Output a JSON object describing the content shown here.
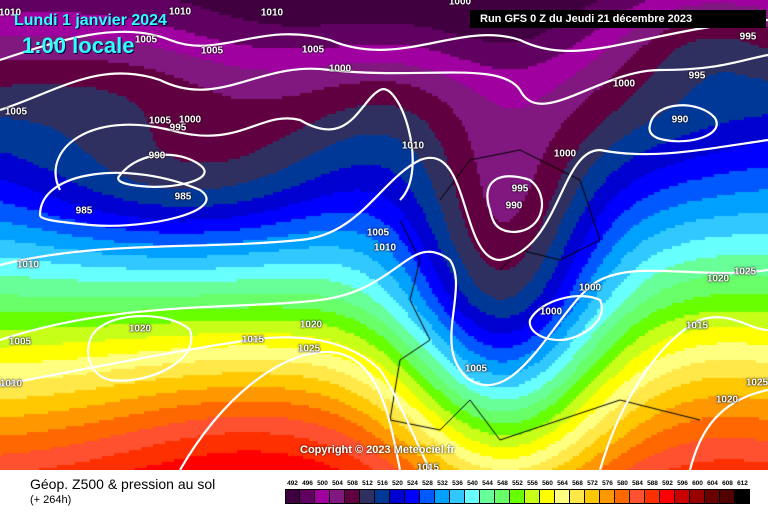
{
  "header": {
    "date": "Lundi 1 janvier 2024",
    "local_time": "1:00 locale",
    "run": "Run GFS 0 Z du Jeudi 21 décembre 2023"
  },
  "copyright": "Copyright © 2023 Meteociel.fr",
  "footer": {
    "title": "Géop. Z500 & pression au sol",
    "forecast_hour": "(+ 264h)"
  },
  "isobar_labels": [
    "1010",
    "1010",
    "1010",
    "1005",
    "1005",
    "1005",
    "1000",
    "995",
    "1000",
    "1000",
    "995",
    "1005",
    "1005",
    "995",
    "1000",
    "990",
    "1010",
    "1000",
    "990",
    "995",
    "990",
    "985",
    "985",
    "1005",
    "1010",
    "1010",
    "1000",
    "1020",
    "1025",
    "1000",
    "1020",
    "1020",
    "1015",
    "1025",
    "1015",
    "1005",
    "1005",
    "1010",
    "1025",
    "1020",
    "1015"
  ],
  "legend": {
    "values": [
      "492",
      "496",
      "500",
      "504",
      "508",
      "512",
      "516",
      "520",
      "524",
      "528",
      "532",
      "536",
      "540",
      "544",
      "548",
      "552",
      "556",
      "560",
      "564",
      "568",
      "572",
      "576",
      "580",
      "584",
      "588",
      "592",
      "596",
      "600",
      "604",
      "608",
      "612"
    ],
    "colors": [
      "#400040",
      "#600060",
      "#a000a0",
      "#801880",
      "#600040",
      "#303060",
      "#003898",
      "#0000d0",
      "#0000ff",
      "#0058ff",
      "#00a0ff",
      "#30c8ff",
      "#68ffff",
      "#68ff98",
      "#68ff68",
      "#68ff00",
      "#c8ff18",
      "#ffff00",
      "#ffff80",
      "#ffe848",
      "#ffc800",
      "#ff9800",
      "#ff6800",
      "#ff5030",
      "#ff3000",
      "#ff0000",
      "#c80000",
      "#980000",
      "#680000",
      "#500000",
      "#000000"
    ]
  }
}
